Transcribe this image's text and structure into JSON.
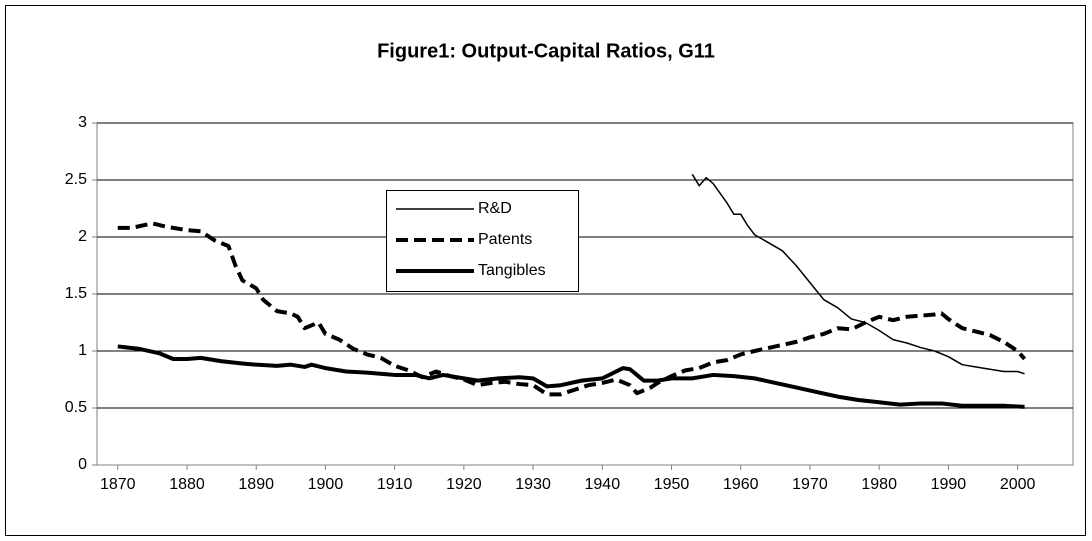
{
  "chart_data": {
    "type": "line",
    "title": "Figure1: Output-Capital Ratios, G11",
    "xlim": [
      1867,
      2008
    ],
    "xticks": [
      1870,
      1880,
      1890,
      1900,
      1910,
      1920,
      1930,
      1940,
      1950,
      1960,
      1970,
      1980,
      1990,
      2000
    ],
    "ylim": [
      0,
      3
    ],
    "yticks": [
      0,
      {
        "value": 0.5,
        "label": "0.5"
      },
      1,
      {
        "value": 1.5,
        "label": "1.5"
      },
      2,
      {
        "value": 2.5,
        "label": "2.5"
      },
      3
    ],
    "grid": true,
    "legend_loc": "upper left",
    "series": [
      {
        "name": "R&D",
        "color": "#000000",
        "line_style": "solid",
        "weight": "thin",
        "x": [
          1953,
          1954,
          1955,
          1956,
          1958,
          1959,
          1960,
          1961,
          1962,
          1964,
          1966,
          1968,
          1970,
          1972,
          1974,
          1976,
          1978,
          1980,
          1982,
          1984,
          1986,
          1988,
          1990,
          1992,
          1994,
          1996,
          1998,
          2000,
          2001
        ],
        "values": [
          2.55,
          2.45,
          2.52,
          2.47,
          2.3,
          2.2,
          2.2,
          2.1,
          2.02,
          1.95,
          1.88,
          1.75,
          1.6,
          1.45,
          1.38,
          1.28,
          1.25,
          1.18,
          1.1,
          1.07,
          1.03,
          1.0,
          0.95,
          0.88,
          0.86,
          0.84,
          0.82,
          0.82,
          0.8
        ]
      },
      {
        "name": "Patents",
        "color": "#000000",
        "line_style": "dashed",
        "weight": "thick",
        "x": [
          1870,
          1872,
          1875,
          1877,
          1880,
          1882,
          1884,
          1886,
          1887,
          1888,
          1890,
          1891,
          1893,
          1895,
          1896,
          1897,
          1899,
          1900,
          1902,
          1904,
          1906,
          1908,
          1910,
          1912,
          1914,
          1916,
          1918,
          1920,
          1922,
          1924,
          1926,
          1928,
          1930,
          1932,
          1934,
          1936,
          1938,
          1940,
          1942,
          1944,
          1945,
          1947,
          1948,
          1950,
          1952,
          1954,
          1956,
          1958,
          1960,
          1962,
          1965,
          1968,
          1970,
          1972,
          1974,
          1976,
          1978,
          1980,
          1982,
          1984,
          1986,
          1988,
          1989,
          1990,
          1992,
          1994,
          1996,
          1998,
          2000,
          2001
        ],
        "values": [
          2.08,
          2.08,
          2.12,
          2.09,
          2.06,
          2.05,
          1.97,
          1.92,
          1.75,
          1.62,
          1.55,
          1.45,
          1.35,
          1.33,
          1.3,
          1.2,
          1.25,
          1.15,
          1.1,
          1.02,
          0.97,
          0.94,
          0.87,
          0.83,
          0.77,
          0.82,
          0.78,
          0.75,
          0.7,
          0.72,
          0.73,
          0.71,
          0.7,
          0.62,
          0.62,
          0.66,
          0.7,
          0.72,
          0.75,
          0.7,
          0.63,
          0.68,
          0.72,
          0.78,
          0.83,
          0.85,
          0.9,
          0.92,
          0.97,
          1.0,
          1.04,
          1.08,
          1.12,
          1.15,
          1.2,
          1.19,
          1.25,
          1.3,
          1.27,
          1.3,
          1.31,
          1.32,
          1.33,
          1.28,
          1.2,
          1.17,
          1.14,
          1.08,
          1.0,
          0.93
        ]
      },
      {
        "name": "Tangibles",
        "color": "#000000",
        "line_style": "solid",
        "weight": "thick",
        "x": [
          1870,
          1873,
          1876,
          1878,
          1880,
          1882,
          1885,
          1888,
          1890,
          1893,
          1895,
          1897,
          1898,
          1900,
          1903,
          1906,
          1910,
          1913,
          1915,
          1917,
          1920,
          1922,
          1925,
          1928,
          1930,
          1932,
          1934,
          1937,
          1940,
          1943,
          1944,
          1946,
          1948,
          1950,
          1953,
          1956,
          1959,
          1962,
          1965,
          1968,
          1971,
          1974,
          1977,
          1980,
          1983,
          1986,
          1989,
          1992,
          1995,
          1998,
          2001
        ],
        "values": [
          1.04,
          1.02,
          0.98,
          0.93,
          0.93,
          0.94,
          0.91,
          0.89,
          0.88,
          0.87,
          0.88,
          0.86,
          0.88,
          0.85,
          0.82,
          0.81,
          0.79,
          0.79,
          0.76,
          0.79,
          0.76,
          0.74,
          0.76,
          0.77,
          0.76,
          0.69,
          0.7,
          0.74,
          0.76,
          0.85,
          0.84,
          0.74,
          0.74,
          0.76,
          0.76,
          0.79,
          0.78,
          0.76,
          0.72,
          0.68,
          0.64,
          0.6,
          0.57,
          0.55,
          0.53,
          0.54,
          0.54,
          0.52,
          0.52,
          0.52,
          0.51
        ]
      }
    ]
  }
}
